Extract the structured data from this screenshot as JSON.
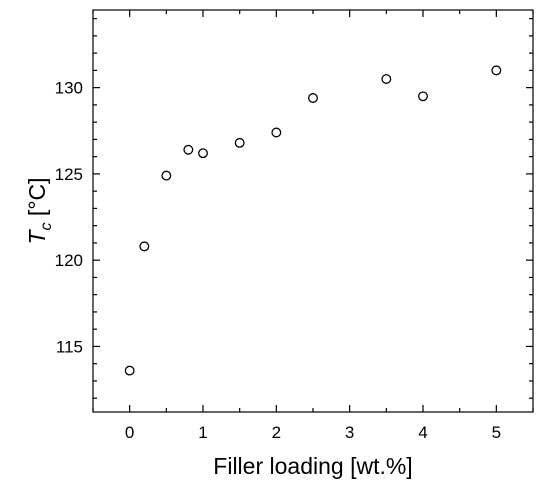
{
  "chart_data": {
    "type": "scatter",
    "title": "",
    "xlabel": "Filler loading [wt.%]",
    "ylabel_main": "T",
    "ylabel_sub": "c",
    "ylabel_unit": " [°C]",
    "xlim": [
      -0.5,
      5.5
    ],
    "ylim": [
      111.2,
      134.5
    ],
    "xticks": [
      0,
      1,
      2,
      3,
      4,
      5
    ],
    "xtick_labels": [
      "0",
      "1",
      "2",
      "3",
      "4",
      "5"
    ],
    "yticks": [
      115,
      120,
      125,
      130
    ],
    "ytick_labels": [
      "115",
      "120",
      "125",
      "130"
    ],
    "grid": false,
    "legend": "none",
    "marker_style": "open-circle",
    "series": [
      {
        "x": [
          0,
          0.2,
          0.5,
          0.8,
          1.0,
          1.5,
          2.0,
          2.5,
          3.5,
          4.0,
          5.0
        ],
        "y": [
          113.6,
          120.8,
          124.9,
          126.4,
          126.2,
          126.8,
          127.4,
          129.4,
          130.5,
          129.5,
          131.0
        ]
      }
    ]
  }
}
